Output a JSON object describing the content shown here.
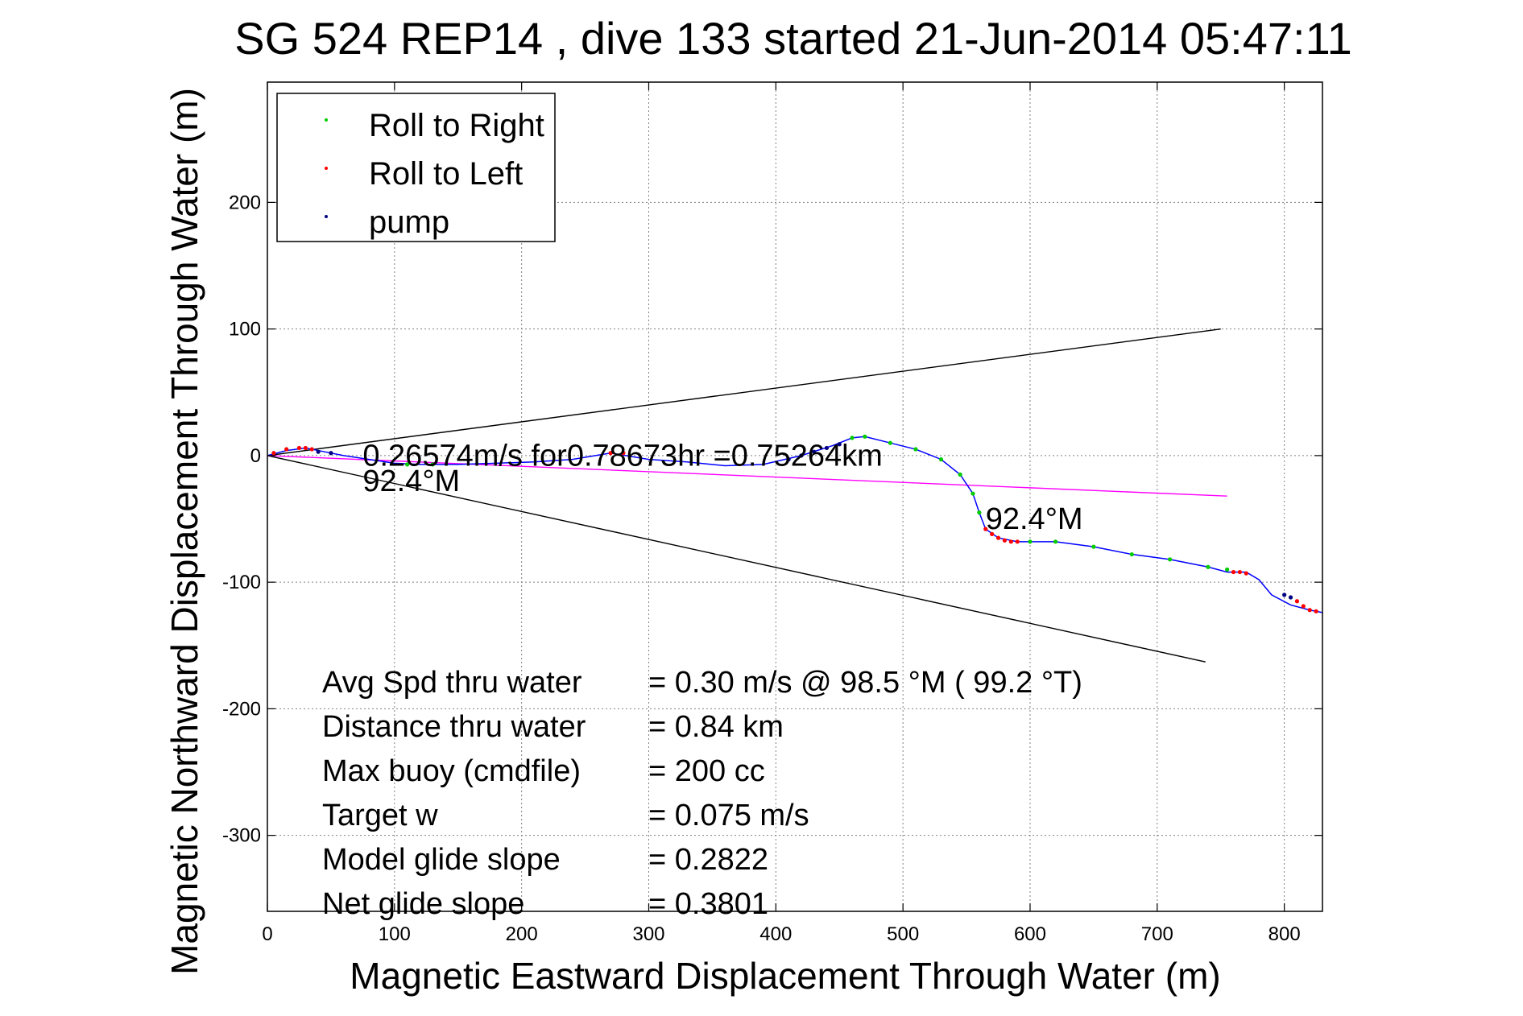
{
  "chart_data": {
    "type": "scatter",
    "title": "SG 524   REP14  , dive 133 started 21-Jun-2014 05:47:11",
    "xlabel": "Magnetic Eastward Displacement Through Water (m)",
    "ylabel": "Magnetic Northward Displacement Through Water (m)",
    "xlim": [
      0,
      830
    ],
    "ylim": [
      -360,
      295
    ],
    "xticks": [
      0,
      100,
      200,
      300,
      400,
      500,
      600,
      700,
      800
    ],
    "yticks": [
      -300,
      -200,
      -100,
      0,
      100,
      200
    ],
    "grid": true,
    "legend_position": "top-left",
    "colors": {
      "roll_right": "#00cc00",
      "roll_left": "#ff0000",
      "pump": "#000080",
      "track": "#0000ff",
      "current_line": "#ff00ff",
      "cone": "#000000"
    },
    "legend": [
      "Roll to Right",
      "Roll to Left",
      "pump"
    ],
    "series": [
      {
        "name": "track",
        "x": [
          0,
          15,
          30,
          45,
          60,
          80,
          100,
          120,
          150,
          180,
          210,
          240,
          270,
          300,
          330,
          360,
          390,
          420,
          445,
          460,
          470,
          490,
          510,
          530,
          545,
          555,
          560,
          565,
          575,
          590,
          600,
          620,
          650,
          680,
          710,
          740,
          755,
          770,
          780,
          790,
          805,
          820,
          830
        ],
        "y": [
          0,
          4,
          6,
          3,
          0,
          -3,
          -6,
          -7,
          -7,
          -6,
          -5,
          -3,
          2,
          -3,
          -5,
          -8,
          -7,
          0,
          8,
          14,
          15,
          10,
          5,
          -3,
          -15,
          -30,
          -45,
          -58,
          -65,
          -68,
          -68,
          -68,
          -72,
          -78,
          -82,
          -88,
          -92,
          -92,
          -98,
          -110,
          -118,
          -122,
          -124
        ]
      },
      {
        "name": "Roll to Right",
        "x": [
          460,
          470,
          490,
          510,
          530,
          545,
          555,
          560,
          600,
          620,
          650,
          680,
          710,
          740,
          755,
          110,
          130
        ],
        "y": [
          14,
          15,
          10,
          5,
          -3,
          -15,
          -30,
          -45,
          -68,
          -68,
          -72,
          -78,
          -82,
          -88,
          -90,
          -7,
          -7
        ]
      },
      {
        "name": "Roll to Left",
        "x": [
          5,
          15,
          25,
          30,
          35,
          565,
          570,
          575,
          580,
          585,
          590,
          760,
          765,
          770,
          810,
          815,
          820,
          825,
          270,
          280
        ],
        "y": [
          2,
          5,
          6,
          6,
          5,
          -58,
          -62,
          -65,
          -67,
          -68,
          -68,
          -92,
          -92,
          -93,
          -115,
          -119,
          -122,
          -123,
          2,
          2
        ]
      },
      {
        "name": "pump",
        "x": [
          410,
          420,
          430,
          440,
          450,
          800,
          805,
          40,
          50
        ],
        "y": [
          -3,
          0,
          3,
          6,
          9,
          -110,
          -112,
          3,
          2
        ]
      }
    ],
    "reference_lines": [
      {
        "name": "cone-upper",
        "x": [
          0,
          750
        ],
        "y": [
          0,
          100
        ]
      },
      {
        "name": "cone-lower",
        "x": [
          0,
          738
        ],
        "y": [
          0,
          -163
        ]
      },
      {
        "name": "current-line",
        "x": [
          0,
          755
        ],
        "y": [
          0,
          -32
        ]
      }
    ],
    "annotations": [
      {
        "text": "0.26574m/s for0.78673hr =0.75264km",
        "x": 75,
        "y": -8
      },
      {
        "text": "92.4°M",
        "x": 75,
        "y": -28
      },
      {
        "text": "92.4°M",
        "x": 565,
        "y": -58
      }
    ],
    "stats": [
      {
        "label": "Avg Spd thru water",
        "value": "=  0.30 m/s @  98.5 °M ( 99.2 °T)"
      },
      {
        "label": "Distance thru water",
        "value": "=  0.84 km"
      },
      {
        "label": "Max buoy (cmdfile)",
        "value": "= 200 cc"
      },
      {
        "label": "Target w",
        "value": "= 0.075 m/s"
      },
      {
        "label": "Model glide slope",
        "value": "= 0.2822"
      },
      {
        "label": "Net glide slope",
        "value": "= 0.3801"
      }
    ]
  }
}
